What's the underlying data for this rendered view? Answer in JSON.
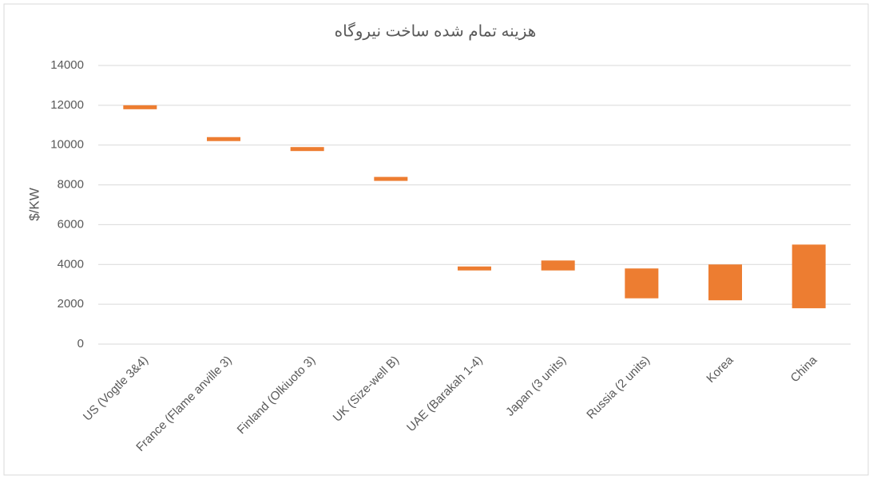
{
  "chart_data": {
    "type": "range-bar",
    "title": "هزینه تمام شده ساخت نیروگاه",
    "y_label": "$/KW",
    "categories": [
      "US (Vogtle 3&4)",
      "France (Flame anville 3)",
      "Finland (Olkiuoto 3)",
      "UK (Size-well B)",
      "UAE (Barakah 1-4)",
      "Japan (3 units)",
      "Russia (2 units)",
      "Korea",
      "China"
    ],
    "low": [
      11800,
      10200,
      9700,
      8200,
      3700,
      3700,
      2300,
      2200,
      1800
    ],
    "high": [
      12000,
      10400,
      9900,
      8400,
      3900,
      4200,
      3800,
      4000,
      5000
    ],
    "color": "#ed7d31",
    "ylim": [
      0,
      14000
    ],
    "yticks": [
      0,
      2000,
      4000,
      6000,
      8000,
      10000,
      12000,
      14000
    ],
    "grid": true
  }
}
